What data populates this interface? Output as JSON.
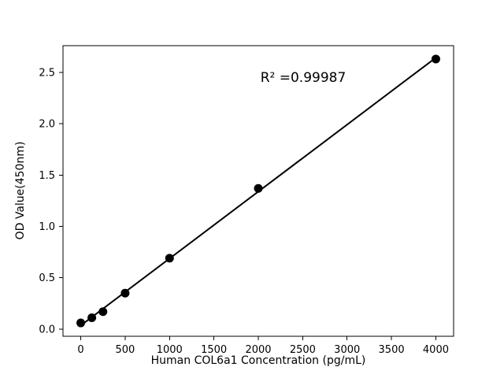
{
  "figure": {
    "background": "#ffffff"
  },
  "chart_data": {
    "type": "scatter",
    "title": "",
    "xlabel": "Human COL6a1 Concentration (pg/mL)",
    "ylabel": "OD Value(450nm)",
    "annotation": "R² =0.99987",
    "x": [
      0,
      125,
      250,
      500,
      1000,
      2000,
      4000
    ],
    "y": [
      0.06,
      0.11,
      0.17,
      0.35,
      0.69,
      1.37,
      2.63
    ],
    "fit_line": true,
    "x_ticks": [
      0,
      500,
      1000,
      1500,
      2000,
      2500,
      3000,
      3500,
      4000
    ],
    "x_tick_labels": [
      "0",
      "500",
      "1000",
      "1500",
      "2000",
      "2500",
      "3000",
      "3500",
      "4000"
    ],
    "y_ticks": [
      0.0,
      0.5,
      1.0,
      1.5,
      2.0,
      2.5
    ],
    "y_tick_labels": [
      "0.0",
      "0.5",
      "1.0",
      "1.5",
      "2.0",
      "2.5"
    ],
    "xlim": [
      -200,
      4200
    ],
    "ylim": [
      -0.07,
      2.76
    ],
    "grid": false,
    "legend_position": "none",
    "marker_color": "#000000",
    "line_color": "#000000"
  }
}
